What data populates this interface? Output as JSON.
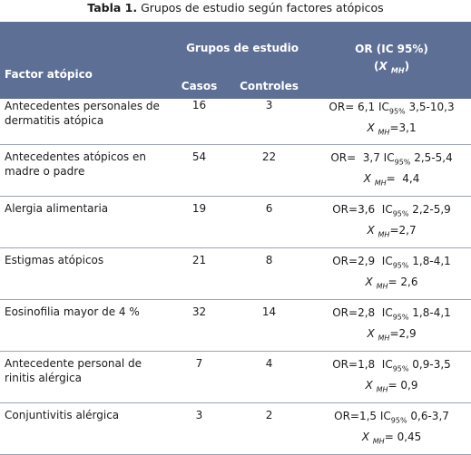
{
  "caption": {
    "bold": "Tabla 1.",
    "rest": " Grupos de estudio según factores atópicos"
  },
  "header": {
    "factor": "Factor atópico",
    "groups": "Grupos de estudio",
    "or_line1": "OR (IC 95%)",
    "or_x": "X",
    "or_sub": "MH",
    "casos": "Casos",
    "controles": "Controles"
  },
  "rows": [
    {
      "factor": "Antecedentes personales de dermatitis atópica",
      "casos": "16",
      "controles": "3",
      "or_pre": "OR= 6,1 IC",
      "ic_sub": "95%",
      "or_post": " 3,5-10,3",
      "x": "X",
      "x_sub": "MH",
      "x_val": "=3,1"
    },
    {
      "factor": "Antecedentes atópicos en madre o padre",
      "casos": "54",
      "controles": "22",
      "or_pre": "OR=  3,7 IC",
      "ic_sub": "95%",
      "or_post": " 2,5-5,4",
      "x": "X",
      "x_sub": "MH",
      "x_val": "=  4,4"
    },
    {
      "factor": "Alergia alimentaria",
      "casos": "19",
      "controles": "6",
      "or_pre": "OR=3,6  IC",
      "ic_sub": "95%",
      "or_post": " 2,2-5,9",
      "x": "X",
      "x_sub": "MH",
      "x_val": "=2,7"
    },
    {
      "factor": "Estigmas atópicos",
      "casos": "21",
      "controles": "8",
      "or_pre": "OR=2,9  IC",
      "ic_sub": "95%",
      "or_post": " 1,8-4,1",
      "x": "X",
      "x_sub": "MH",
      "x_val": "= 2,6"
    },
    {
      "factor": "Eosinofilia mayor de 4 %",
      "casos": "32",
      "controles": "14",
      "or_pre": "OR=2,8  IC",
      "ic_sub": "95%",
      "or_post": " 1,8-4,1",
      "x": "X",
      "x_sub": "MH",
      "x_val": "=2,9"
    },
    {
      "factor": "Antecedente personal de rinitis alérgica",
      "casos": "7",
      "controles": "4",
      "or_pre": "OR=1,8  IC",
      "ic_sub": "95%",
      "or_post": " 0,9-3,5",
      "x": "X",
      "x_sub": "MH",
      "x_val": "= 0,9"
    },
    {
      "factor": "Conjuntivitis alérgica",
      "casos": "3",
      "controles": "2",
      "or_pre": "OR=1,5 IC",
      "ic_sub": "95%",
      "or_post": " 0,6-3,7",
      "x": "X",
      "x_sub": "MH",
      "x_val": "= 0,45"
    }
  ]
}
